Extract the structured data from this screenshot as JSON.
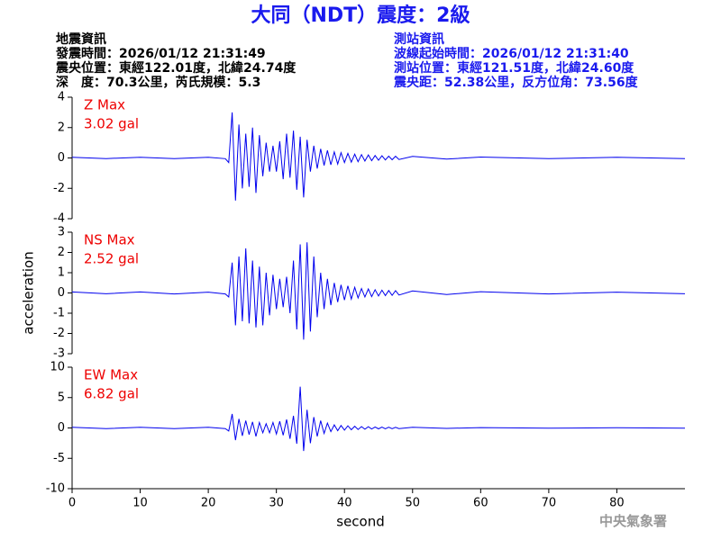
{
  "header": {
    "title": "大同（NDT）震度：2級",
    "left_lines": [
      "地震資訊",
      "發震時間：2026/01/12 21:31:49",
      "震央位置：東經122.01度，北緯24.74度",
      "深　度：70.3公里，芮氏規模：5.3"
    ],
    "right_lines": [
      "測站資訊",
      "波線起始時間：2026/01/12 21:31:40",
      "測站位置：東經121.51度，北緯24.60度",
      "震央距：52.38公里，反方位角：73.56度"
    ]
  },
  "footer": "中央氣象署",
  "chart_data": [
    {
      "type": "line",
      "annotations": [
        "Z Max",
        "3.02 gal"
      ],
      "xlim": [
        0,
        90
      ],
      "ylim": [
        -4,
        4
      ],
      "yticks": [
        -4,
        -2,
        0,
        2,
        4
      ],
      "series": [
        {
          "color": "#0000ee",
          "x": [
            0,
            5,
            10,
            15,
            20,
            22.5,
            23,
            23.5,
            24,
            24.5,
            25,
            25.5,
            26,
            26.5,
            27,
            27.5,
            28,
            28.5,
            29,
            29.5,
            30,
            30.5,
            31,
            31.5,
            32,
            32.5,
            33,
            33.5,
            34,
            34.5,
            35,
            35.5,
            36,
            36.5,
            37,
            37.5,
            38,
            38.5,
            39,
            39.5,
            40,
            40.5,
            41,
            41.5,
            42,
            42.5,
            43,
            43.5,
            44,
            44.5,
            45,
            45.5,
            46,
            46.5,
            47,
            47.5,
            48,
            50,
            55,
            60,
            70,
            80,
            90
          ],
          "values": [
            0.05,
            -0.04,
            0.05,
            -0.05,
            0.04,
            -0.05,
            -0.3,
            3.0,
            -2.8,
            2.2,
            -2.0,
            1.6,
            -1.9,
            2.0,
            -2.3,
            1.5,
            -1.2,
            1.0,
            -0.9,
            0.8,
            -0.9,
            1.1,
            -1.4,
            1.6,
            -1.3,
            1.8,
            -2.1,
            1.4,
            -2.6,
            1.2,
            -0.9,
            0.8,
            -0.7,
            0.6,
            -0.5,
            0.5,
            -0.45,
            0.4,
            -0.4,
            0.35,
            -0.3,
            0.3,
            -0.28,
            0.25,
            -0.25,
            0.22,
            -0.2,
            0.2,
            -0.18,
            0.16,
            -0.15,
            0.14,
            -0.13,
            0.12,
            -0.12,
            0.11,
            -0.1,
            0.1,
            -0.08,
            0.06,
            -0.05,
            0.04,
            -0.04
          ]
        }
      ]
    },
    {
      "type": "line",
      "annotations": [
        "NS Max",
        "2.52 gal"
      ],
      "y_label": "acceleration",
      "xlim": [
        0,
        90
      ],
      "ylim": [
        -3,
        3
      ],
      "yticks": [
        -3,
        -2,
        -1,
        0,
        1,
        2,
        3
      ],
      "series": [
        {
          "color": "#0000ee",
          "x": [
            0,
            5,
            10,
            15,
            20,
            22.5,
            23,
            23.5,
            24,
            24.5,
            25,
            25.5,
            26,
            26.5,
            27,
            27.5,
            28,
            28.5,
            29,
            29.5,
            30,
            30.5,
            31,
            31.5,
            32,
            32.5,
            33,
            33.5,
            34,
            34.5,
            35,
            35.5,
            36,
            36.5,
            37,
            37.5,
            38,
            38.5,
            39,
            39.5,
            40,
            40.5,
            41,
            41.5,
            42,
            42.5,
            43,
            43.5,
            44,
            44.5,
            45,
            45.5,
            46,
            46.5,
            47,
            47.5,
            48,
            50,
            55,
            60,
            70,
            80,
            90
          ],
          "values": [
            0.05,
            -0.04,
            0.05,
            -0.05,
            0.04,
            -0.05,
            -0.2,
            1.5,
            -1.6,
            1.8,
            -1.4,
            2.2,
            -1.5,
            1.6,
            -1.7,
            1.3,
            -1.6,
            1.0,
            -1.1,
            0.9,
            -0.8,
            0.7,
            -0.7,
            0.8,
            -1.0,
            1.6,
            -1.8,
            2.4,
            -2.3,
            2.5,
            -1.9,
            1.8,
            -1.2,
            1.0,
            -0.8,
            0.7,
            -0.6,
            0.5,
            -0.45,
            0.4,
            -0.35,
            0.35,
            -0.3,
            0.28,
            -0.25,
            0.22,
            -0.2,
            0.2,
            -0.18,
            0.16,
            -0.15,
            0.14,
            -0.13,
            0.12,
            -0.12,
            0.11,
            -0.1,
            0.1,
            -0.08,
            0.06,
            -0.05,
            0.04,
            -0.04
          ]
        }
      ]
    },
    {
      "type": "line",
      "annotations": [
        "EW Max",
        "6.82 gal"
      ],
      "x_label": "second",
      "xlim": [
        0,
        90
      ],
      "xticks": [
        0,
        10,
        20,
        30,
        40,
        50,
        60,
        70,
        80
      ],
      "ylim": [
        -10,
        10
      ],
      "yticks": [
        -10,
        -5,
        0,
        5,
        10
      ],
      "series": [
        {
          "color": "#0000ee",
          "x": [
            0,
            5,
            10,
            15,
            20,
            22.5,
            23,
            23.5,
            24,
            24.5,
            25,
            25.5,
            26,
            26.5,
            27,
            27.5,
            28,
            28.5,
            29,
            29.5,
            30,
            30.5,
            31,
            31.5,
            32,
            32.5,
            33,
            33.5,
            34,
            34.5,
            35,
            35.5,
            36,
            36.5,
            37,
            37.5,
            38,
            38.5,
            39,
            39.5,
            40,
            40.5,
            41,
            41.5,
            42,
            42.5,
            43,
            43.5,
            44,
            44.5,
            45,
            45.5,
            46,
            46.5,
            47,
            47.5,
            48,
            50,
            55,
            60,
            70,
            80,
            90
          ],
          "values": [
            0.1,
            -0.1,
            0.1,
            -0.1,
            0.1,
            -0.1,
            -0.5,
            2.3,
            -2.0,
            1.5,
            -1.3,
            1.2,
            -1.1,
            1.0,
            -1.4,
            0.9,
            -0.8,
            0.7,
            -0.8,
            0.9,
            -1.0,
            1.1,
            -1.2,
            1.4,
            -1.8,
            2.0,
            -2.6,
            6.8,
            -3.8,
            3.0,
            -2.5,
            1.8,
            -1.4,
            1.2,
            -0.9,
            0.8,
            -0.6,
            0.5,
            -0.45,
            0.4,
            -0.35,
            0.35,
            -0.3,
            0.28,
            -0.25,
            0.22,
            -0.2,
            0.2,
            -0.18,
            0.16,
            -0.15,
            0.14,
            -0.13,
            0.12,
            -0.12,
            0.11,
            -0.1,
            0.1,
            -0.08,
            0.06,
            -0.05,
            0.04,
            -0.04
          ]
        }
      ]
    }
  ]
}
